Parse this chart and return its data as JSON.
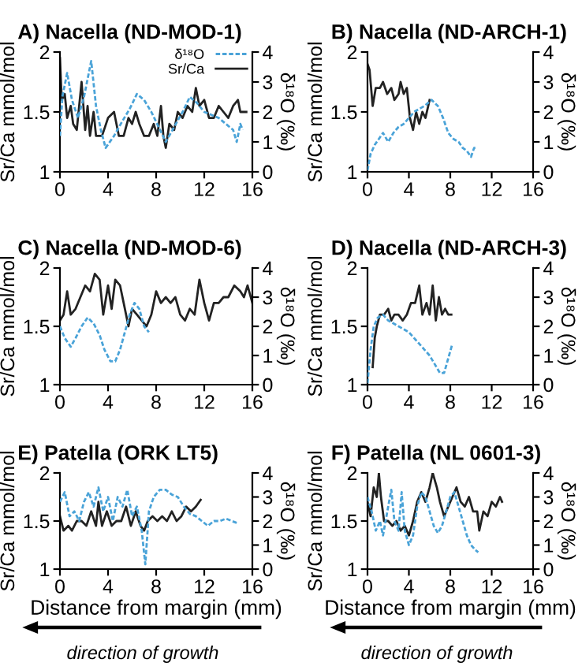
{
  "chart_data": [
    {
      "type": "line",
      "title": "A) Nacella (ND-MOD-1)",
      "ylabel": "Sr/Ca mmol/mol",
      "y2label": "δ¹⁸O (‰)",
      "xlim": [
        0,
        16
      ],
      "xticks": [
        0,
        4,
        8,
        12,
        16
      ],
      "ylim": [
        1,
        2
      ],
      "yticks": [
        1,
        1.5,
        2
      ],
      "y2lim": [
        0,
        4
      ],
      "y2ticks": [
        0,
        1,
        2,
        3,
        4
      ],
      "grid": false,
      "legend": "top right",
      "series": [
        {
          "name": "δ¹⁸O",
          "color": "#4aa3d8",
          "axis": "y2",
          "line_style": "dashed",
          "x": [
            0,
            0.2,
            0.6,
            1.0,
            1.5,
            2.0,
            2.6,
            3.0,
            3.4,
            3.8,
            4.5,
            5.2,
            5.8,
            6.4,
            7.0,
            7.6,
            8.2,
            8.8,
            9.5,
            10.2,
            10.8,
            11.4,
            12.0,
            12.6,
            13.2,
            13.8,
            14.4,
            14.7,
            15.0,
            15.2
          ],
          "values": [
            1.2,
            2.5,
            3.3,
            2.4,
            1.8,
            2.5,
            3.7,
            2.2,
            1.4,
            0.8,
            1.2,
            1.7,
            2.1,
            2.6,
            2.4,
            2.0,
            1.5,
            1.0,
            1.5,
            2.0,
            2.5,
            2.3,
            2.0,
            1.9,
            1.8,
            1.6,
            1.4,
            1.0,
            1.6,
            1.4
          ]
        },
        {
          "name": "Sr/Ca",
          "color": "#222222",
          "line_style": "solid",
          "x": [
            0,
            0.15,
            0.4,
            0.6,
            0.9,
            1.1,
            1.4,
            1.8,
            2.1,
            2.3,
            2.5,
            2.8,
            3.0,
            3.5,
            4.0,
            4.5,
            4.9,
            5.3,
            5.7,
            6.0,
            6.3,
            6.6,
            7.0,
            7.4,
            7.8,
            8.1,
            8.4,
            8.6,
            8.8,
            9.1,
            9.5,
            9.8,
            10.2,
            10.6,
            11.0,
            11.3,
            11.6,
            12.0,
            12.4,
            12.8,
            13.2,
            13.6,
            14.0,
            14.4,
            14.8,
            15.0,
            15.5
          ],
          "values": [
            1.95,
            1.6,
            1.65,
            1.45,
            1.55,
            1.4,
            1.35,
            1.75,
            1.35,
            1.55,
            1.3,
            1.5,
            1.3,
            1.3,
            1.45,
            1.5,
            1.3,
            1.3,
            1.45,
            1.4,
            1.5,
            1.4,
            1.3,
            1.3,
            1.4,
            1.3,
            1.55,
            1.3,
            1.2,
            1.4,
            1.35,
            1.5,
            1.45,
            1.55,
            1.5,
            1.7,
            1.55,
            1.6,
            1.45,
            1.45,
            1.55,
            1.5,
            1.45,
            1.55,
            1.6,
            1.5,
            1.5
          ]
        }
      ]
    },
    {
      "type": "line",
      "title": "B) Nacella (ND-ARCH-1)",
      "ylabel": "Sr/Ca mmol/mol",
      "y2label": "δ¹⁸O (‰)",
      "xlim": [
        0,
        16
      ],
      "xticks": [
        0,
        4,
        8,
        12,
        16
      ],
      "ylim": [
        1,
        2
      ],
      "yticks": [
        1,
        1.5,
        2
      ],
      "y2lim": [
        0,
        4
      ],
      "y2ticks": [
        0,
        1,
        2,
        3,
        4
      ],
      "grid": false,
      "series": [
        {
          "color": "#4aa3d8",
          "axis": "y2",
          "line_style": "dashed",
          "x": [
            0,
            0.3,
            0.7,
            1.1,
            1.5,
            2.0,
            2.5,
            3.0,
            3.5,
            4.0,
            4.5,
            5.0,
            5.5,
            6.2,
            6.8,
            7.3,
            7.8,
            8.3,
            8.8,
            9.2,
            9.6,
            10.0,
            10.3,
            10.6
          ],
          "values": [
            0.05,
            0.6,
            0.9,
            1.1,
            1.3,
            1.0,
            1.3,
            1.5,
            1.6,
            1.8,
            2.0,
            2.1,
            2.2,
            2.4,
            2.2,
            1.8,
            1.3,
            1.1,
            1.0,
            0.8,
            0.7,
            0.5,
            0.8,
            0.8
          ]
        },
        {
          "color": "#222222",
          "line_style": "solid",
          "x": [
            0,
            0.2,
            0.5,
            0.8,
            1.2,
            1.5,
            1.9,
            2.3,
            2.6,
            3.0,
            3.2,
            3.5,
            3.8,
            4.1,
            4.4,
            4.7,
            5.0,
            5.3,
            5.6,
            6.0
          ],
          "values": [
            1.9,
            1.85,
            1.55,
            1.7,
            1.7,
            1.75,
            1.65,
            1.7,
            1.6,
            1.65,
            1.75,
            1.65,
            1.7,
            1.45,
            1.35,
            1.5,
            1.4,
            1.5,
            1.45,
            1.6
          ]
        }
      ]
    },
    {
      "type": "line",
      "title": "C) Nacella (ND-MOD-6)",
      "ylabel": "Sr/Ca mmol/mol",
      "y2label": "δ¹⁸O (‰)",
      "xlim": [
        0,
        16
      ],
      "xticks": [
        0,
        4,
        8,
        12,
        16
      ],
      "ylim": [
        1,
        2
      ],
      "yticks": [
        1,
        1.5,
        2
      ],
      "y2lim": [
        0,
        4
      ],
      "y2ticks": [
        0,
        1,
        2,
        3,
        4
      ],
      "grid": false,
      "series": [
        {
          "color": "#4aa3d8",
          "axis": "y2",
          "line_style": "dashed",
          "x": [
            0,
            0.4,
            0.9,
            1.3,
            1.8,
            2.3,
            2.8,
            3.3,
            3.7,
            4.2,
            4.6,
            5.0,
            5.4,
            5.8,
            6.2,
            6.6,
            7.0,
            7.4
          ],
          "values": [
            2.0,
            1.6,
            1.3,
            1.6,
            2.0,
            2.3,
            2.1,
            1.7,
            1.2,
            0.8,
            0.8,
            1.2,
            1.8,
            2.4,
            2.8,
            2.6,
            2.0,
            1.8
          ]
        },
        {
          "color": "#222222",
          "line_style": "solid",
          "x": [
            0,
            0.3,
            0.6,
            0.9,
            1.3,
            1.7,
            2.1,
            2.5,
            2.9,
            3.3,
            3.6,
            4.0,
            4.3,
            4.6,
            5.0,
            5.3,
            5.7,
            6.0,
            6.4,
            6.8,
            7.2,
            7.6,
            8.0,
            8.4,
            8.8,
            9.2,
            9.6,
            10.0,
            10.4,
            10.8,
            11.2,
            11.6,
            12.0,
            12.4,
            12.8,
            13.2,
            13.6,
            14.0,
            14.5,
            15.0,
            15.3,
            15.6,
            16.0
          ],
          "values": [
            1.55,
            1.6,
            1.8,
            1.6,
            1.65,
            1.75,
            1.85,
            1.8,
            1.95,
            1.9,
            1.6,
            1.85,
            1.65,
            1.9,
            1.85,
            1.7,
            1.5,
            1.65,
            1.6,
            1.55,
            1.5,
            1.6,
            1.8,
            1.7,
            1.75,
            1.7,
            1.75,
            1.6,
            1.55,
            1.65,
            1.6,
            1.9,
            1.7,
            1.55,
            1.7,
            1.7,
            1.75,
            1.75,
            1.85,
            1.8,
            1.75,
            1.85,
            1.7
          ]
        }
      ]
    },
    {
      "type": "line",
      "title": "D) Nacella (ND-ARCH-3)",
      "ylabel": "Sr/Ca mmol/mol",
      "y2label": "δ¹⁸O (‰)",
      "xlim": [
        0,
        16
      ],
      "xticks": [
        0,
        4,
        8,
        12,
        16
      ],
      "ylim": [
        1,
        2
      ],
      "yticks": [
        1,
        1.5,
        2
      ],
      "y2lim": [
        0,
        4
      ],
      "y2ticks": [
        0,
        1,
        2,
        3,
        4
      ],
      "grid": false,
      "series": [
        {
          "color": "#4aa3d8",
          "axis": "y2",
          "line_style": "dashed",
          "x": [
            0,
            0.3,
            0.6,
            1.0,
            1.5,
            2.0,
            2.5,
            3.0,
            3.5,
            4.0,
            4.5,
            5.0,
            5.5,
            6.0,
            6.5,
            7.0,
            7.4,
            7.8,
            8.2
          ],
          "values": [
            0.05,
            1.2,
            2.0,
            2.3,
            2.4,
            2.2,
            2.1,
            2.0,
            1.9,
            1.8,
            1.6,
            1.4,
            1.2,
            1.0,
            0.7,
            0.4,
            0.4,
            0.9,
            1.4
          ]
        },
        {
          "color": "#222222",
          "line_style": "solid",
          "x": [
            0.5,
            0.7,
            0.9,
            1.2,
            1.6,
            2.0,
            2.3,
            2.6,
            3.0,
            3.4,
            3.8,
            4.2,
            4.6,
            5.0,
            5.3,
            5.7,
            6.0,
            6.3,
            6.6,
            6.9,
            7.2,
            7.5,
            7.8,
            8.1
          ],
          "values": [
            1.15,
            1.4,
            1.5,
            1.6,
            1.6,
            1.65,
            1.55,
            1.6,
            1.6,
            1.55,
            1.6,
            1.7,
            1.7,
            1.85,
            1.6,
            1.7,
            1.6,
            1.85,
            1.55,
            1.75,
            1.6,
            1.65,
            1.6,
            1.6
          ]
        }
      ]
    },
    {
      "type": "line",
      "title": "E) Patella (ORK LT5)",
      "xlabel": "Distance from margin (mm)",
      "ylabel": "Sr/Ca mmol/mol",
      "y2label": "δ¹⁸O (‰)",
      "xlim": [
        0,
        16
      ],
      "xticks": [
        0,
        4,
        8,
        12,
        16
      ],
      "ylim": [
        1,
        2
      ],
      "yticks": [
        1,
        1.5,
        2
      ],
      "y2lim": [
        0,
        4
      ],
      "y2ticks": [
        0,
        1,
        2,
        3,
        4
      ],
      "grid": false,
      "annotations": [
        "direction of growth"
      ],
      "series": [
        {
          "color": "#4aa3d8",
          "axis": "y2",
          "line_style": "dashed",
          "x": [
            0,
            0.4,
            0.8,
            1.2,
            1.6,
            2.0,
            2.4,
            2.8,
            3.2,
            3.6,
            4.0,
            4.4,
            4.8,
            5.2,
            5.6,
            6.0,
            6.4,
            6.8,
            7.1,
            7.4,
            7.8,
            8.3,
            8.8,
            9.3,
            9.8,
            10.3,
            10.8,
            11.3,
            11.8,
            12.3,
            12.8,
            13.3,
            13.8,
            14.3,
            14.8
          ],
          "values": [
            2.8,
            3.2,
            2.2,
            2.4,
            2.0,
            2.8,
            3.2,
            2.6,
            3.4,
            2.4,
            3.0,
            2.0,
            3.0,
            2.6,
            3.3,
            2.2,
            2.6,
            1.6,
            0.2,
            2.4,
            3.0,
            3.3,
            3.3,
            3.1,
            3.0,
            2.6,
            2.3,
            2.2,
            2.0,
            1.8,
            2.0,
            2.0,
            2.1,
            2.0,
            1.9
          ]
        },
        {
          "color": "#222222",
          "line_style": "solid",
          "x": [
            0,
            0.3,
            0.7,
            1.0,
            1.4,
            1.8,
            2.2,
            2.6,
            3.0,
            3.2,
            3.5,
            3.9,
            4.3,
            4.7,
            5.1,
            5.5,
            5.9,
            6.3,
            6.7,
            7.0,
            7.3,
            7.7,
            8.1,
            8.5,
            8.9,
            9.3,
            9.7,
            10.1,
            10.5,
            10.9,
            11.3,
            11.7
          ],
          "values": [
            1.55,
            1.4,
            1.45,
            1.4,
            1.5,
            1.5,
            1.45,
            1.6,
            1.45,
            1.7,
            1.45,
            1.6,
            1.45,
            1.5,
            1.5,
            1.65,
            1.45,
            1.6,
            1.45,
            1.4,
            1.5,
            1.55,
            1.5,
            1.55,
            1.5,
            1.6,
            1.5,
            1.55,
            1.65,
            1.6,
            1.65,
            1.72
          ]
        }
      ]
    },
    {
      "type": "line",
      "title": "F) Patella (NL 0601-3)",
      "xlabel": "Distance from margin (mm)",
      "ylabel": "Sr/Ca mmol/mol",
      "y2label": "δ¹⁸O (‰)",
      "xlim": [
        0,
        16
      ],
      "xticks": [
        0,
        4,
        8,
        12,
        16
      ],
      "ylim": [
        1,
        2
      ],
      "yticks": [
        1,
        1.5,
        2
      ],
      "y2lim": [
        0,
        4
      ],
      "y2ticks": [
        0,
        1,
        2,
        3,
        4
      ],
      "grid": false,
      "annotations": [
        "direction of growth"
      ],
      "series": [
        {
          "color": "#4aa3d8",
          "axis": "y2",
          "line_style": "dashed",
          "x": [
            0,
            0.4,
            0.8,
            1.2,
            1.5,
            2.0,
            2.3,
            2.6,
            3.0,
            3.3,
            3.6,
            4.0,
            4.4,
            4.8,
            5.2,
            5.6,
            6.0,
            6.4,
            6.8,
            7.2,
            7.6,
            8.0,
            8.4,
            8.8,
            9.2,
            9.6,
            10.0,
            10.4,
            10.7
          ],
          "values": [
            3.0,
            2.4,
            1.6,
            2.0,
            1.4,
            2.6,
            3.3,
            2.0,
            1.6,
            3.2,
            1.6,
            1.0,
            1.4,
            2.6,
            3.2,
            3.0,
            2.4,
            1.8,
            1.5,
            1.8,
            2.4,
            3.0,
            3.2,
            2.6,
            2.0,
            1.4,
            1.0,
            0.8,
            0.7
          ]
        },
        {
          "color": "#222222",
          "line_style": "solid",
          "x": [
            0,
            0.3,
            0.6,
            0.9,
            1.1,
            1.3,
            1.6,
            2.0,
            2.4,
            2.8,
            3.2,
            3.6,
            4.0,
            4.4,
            4.8,
            5.2,
            5.6,
            6.0,
            6.3,
            6.7,
            7.0,
            7.4,
            7.8,
            8.2,
            8.6,
            9.0,
            9.4,
            9.8,
            10.2,
            10.6,
            10.8,
            11.2,
            11.6,
            12.0,
            12.4,
            12.8,
            13.0
          ],
          "values": [
            1.7,
            1.55,
            1.85,
            1.75,
            2.0,
            1.75,
            1.5,
            1.5,
            1.45,
            1.5,
            1.4,
            1.45,
            1.35,
            1.5,
            1.7,
            1.8,
            1.7,
            1.85,
            2.0,
            1.85,
            1.7,
            1.55,
            1.65,
            1.75,
            1.85,
            1.7,
            1.65,
            1.75,
            1.6,
            1.6,
            1.4,
            1.6,
            1.55,
            1.7,
            1.65,
            1.75,
            1.7
          ]
        }
      ]
    }
  ]
}
